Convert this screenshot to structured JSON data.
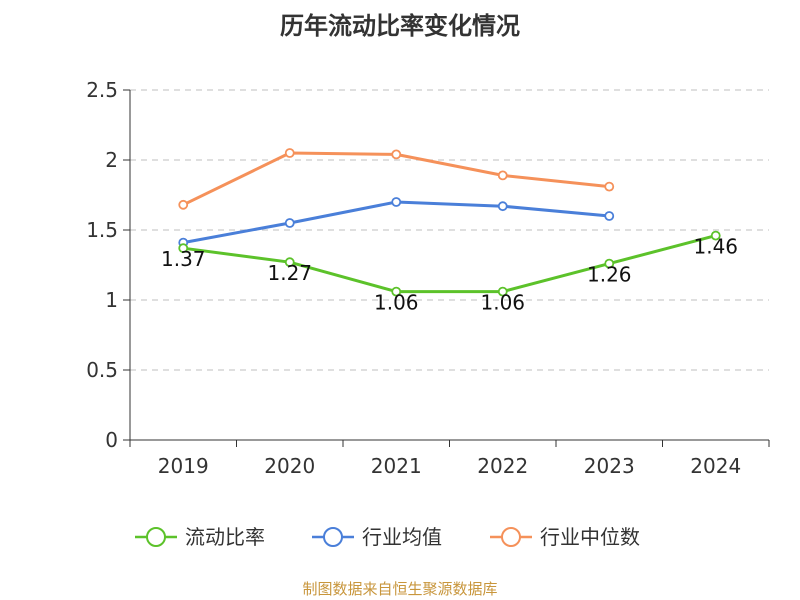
{
  "chart_data": {
    "type": "line",
    "title": "历年流动比率变化情况",
    "xlabel": "",
    "ylabel": "",
    "categories": [
      "2019",
      "2020",
      "2021",
      "2022",
      "2023",
      "2024"
    ],
    "ylim": [
      0,
      2.5
    ],
    "yticks": [
      "0",
      "0.5",
      "1",
      "1.5",
      "2",
      "2.5"
    ],
    "grid": "horizontal dashed",
    "legend_position": "bottom",
    "series": [
      {
        "name": "流动比率",
        "color": "#5cc22a",
        "values": [
          1.37,
          1.27,
          1.06,
          1.06,
          1.26,
          1.46
        ],
        "labels": [
          "1.37",
          "1.27",
          "1.06",
          "1.06",
          "1.26",
          "1.46"
        ]
      },
      {
        "name": "行业均值",
        "color": "#4a7fd9",
        "values": [
          1.41,
          1.55,
          1.7,
          1.67,
          1.6,
          null
        ]
      },
      {
        "name": "行业中位数",
        "color": "#f5915a",
        "values": [
          1.68,
          2.05,
          2.04,
          1.89,
          1.81,
          null
        ]
      }
    ]
  },
  "source": "制图数据来自恒生聚源数据库"
}
